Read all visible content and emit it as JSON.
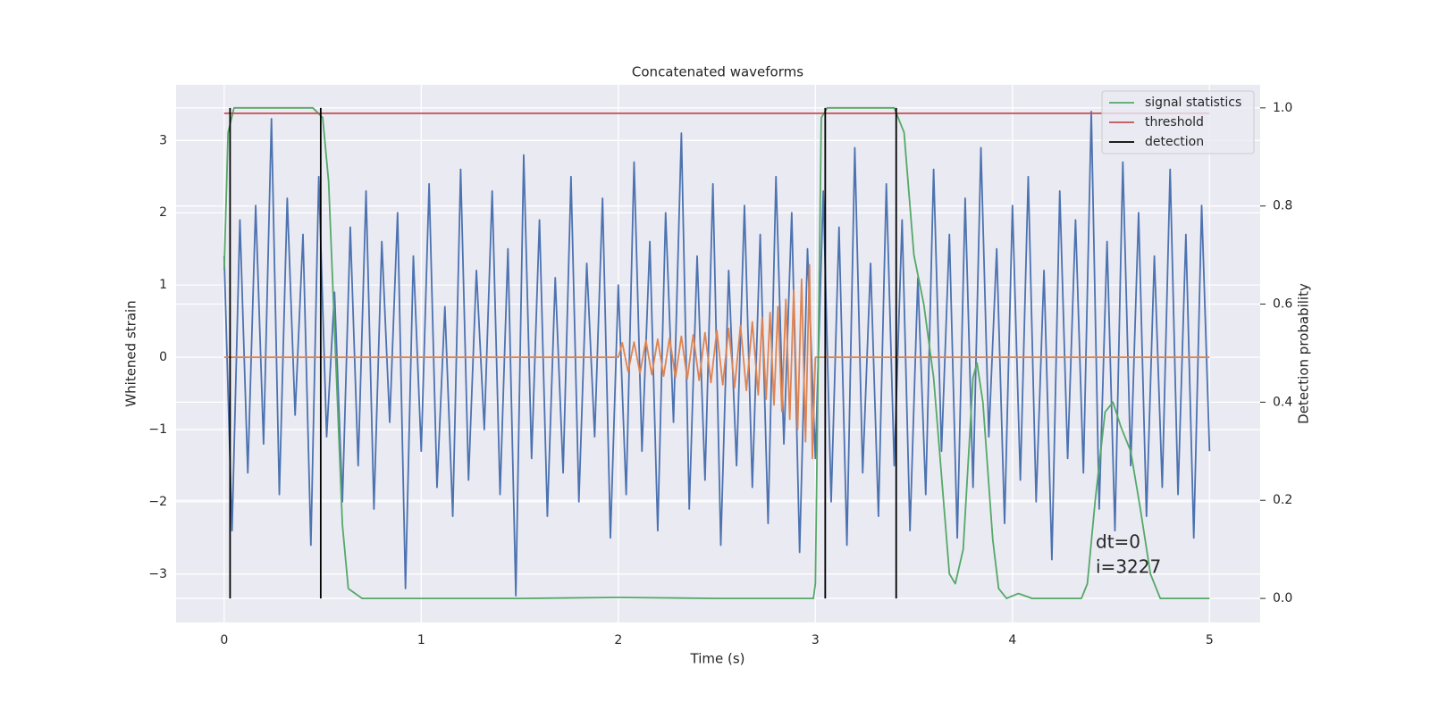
{
  "chart_data": {
    "type": "line",
    "title": "Concatenated waveforms",
    "xlabel": "Time (s)",
    "ylabel": "Whitened strain",
    "y2label": "Detection probability",
    "xlim": [
      -0.244,
      5.257
    ],
    "ylim": [
      -3.67,
      3.77
    ],
    "y2lim": [
      -0.049,
      1.047
    ],
    "xticks": [
      0,
      1,
      2,
      3,
      4,
      5
    ],
    "yticks": [
      {
        "value": -3,
        "label": "−3"
      },
      {
        "value": -2,
        "label": "−2"
      },
      {
        "value": -1,
        "label": "−1"
      },
      0,
      1,
      2,
      3
    ],
    "y2ticks": [
      {
        "value": 0,
        "label": "0.0"
      },
      {
        "value": 0.2,
        "label": "0.2"
      },
      {
        "value": 0.4,
        "label": "0.4"
      },
      {
        "value": 0.6,
        "label": "0.6"
      },
      {
        "value": 0.8,
        "label": "0.8"
      },
      {
        "value": 1,
        "label": "1.0"
      }
    ],
    "grid": true,
    "legend": "upper right",
    "annotations": [
      "dt=0",
      "i=3227"
    ],
    "strain": {
      "color": "#4c72b0",
      "x": [
        0,
        0.04,
        0.08,
        0.12,
        0.16,
        0.2,
        0.24,
        0.28,
        0.32,
        0.36,
        0.4,
        0.44,
        0.48,
        0.52,
        0.56,
        0.6,
        0.64,
        0.68,
        0.72,
        0.76,
        0.8,
        0.84,
        0.88,
        0.92,
        0.96,
        1,
        1.04,
        1.08,
        1.12,
        1.16,
        1.2,
        1.24,
        1.28,
        1.32,
        1.36,
        1.4,
        1.44,
        1.48,
        1.52,
        1.56,
        1.6,
        1.64,
        1.68,
        1.72,
        1.76,
        1.8,
        1.84,
        1.88,
        1.92,
        1.96,
        2,
        2.04,
        2.08,
        2.12,
        2.16,
        2.2,
        2.24,
        2.28,
        2.32,
        2.36,
        2.4,
        2.44,
        2.48,
        2.52,
        2.56,
        2.6,
        2.64,
        2.68,
        2.72,
        2.76,
        2.8,
        2.84,
        2.88,
        2.92,
        2.96,
        3,
        3.04,
        3.08,
        3.12,
        3.16,
        3.2,
        3.24,
        3.28,
        3.32,
        3.36,
        3.4,
        3.44,
        3.48,
        3.52,
        3.56,
        3.6,
        3.64,
        3.68,
        3.72,
        3.76,
        3.8,
        3.84,
        3.88,
        3.92,
        3.96,
        4,
        4.04,
        4.08,
        4.12,
        4.16,
        4.2,
        4.24,
        4.28,
        4.32,
        4.36,
        4.4,
        4.44,
        4.48,
        4.52,
        4.56,
        4.6,
        4.64,
        4.68,
        4.72,
        4.76,
        4.8,
        4.84,
        4.88,
        4.92,
        4.96,
        5
      ],
      "values": [
        1.4,
        -2.4,
        1.9,
        -1.6,
        2.1,
        -1.2,
        3.3,
        -1.9,
        2.2,
        -0.8,
        1.7,
        -2.6,
        2.5,
        -1.1,
        0.9,
        -2.0,
        1.8,
        -1.5,
        2.3,
        -2.1,
        1.6,
        -0.9,
        2.0,
        -3.2,
        1.4,
        -1.3,
        2.4,
        -1.8,
        0.7,
        -2.2,
        2.6,
        -1.7,
        1.2,
        -1.0,
        2.3,
        -1.9,
        1.5,
        -3.3,
        2.8,
        -1.4,
        1.9,
        -2.2,
        1.1,
        -1.6,
        2.5,
        -2.0,
        1.3,
        -1.1,
        2.2,
        -2.5,
        1.0,
        -1.9,
        2.7,
        -1.3,
        1.6,
        -2.4,
        2.0,
        -0.9,
        3.1,
        -2.1,
        1.4,
        -1.7,
        2.4,
        -2.6,
        1.2,
        -1.5,
        2.1,
        -1.8,
        1.7,
        -2.3,
        2.5,
        -1.2,
        2.0,
        -2.7,
        1.5,
        -1.4,
        2.3,
        -2.0,
        1.8,
        -2.6,
        2.9,
        -1.6,
        1.3,
        -2.2,
        2.4,
        -1.5,
        1.9,
        -2.4,
        1.1,
        -1.9,
        2.6,
        -1.3,
        1.7,
        -2.5,
        2.2,
        -1.8,
        2.9,
        -1.1,
        1.5,
        -2.3,
        2.1,
        -1.7,
        2.5,
        -2.0,
        1.2,
        -2.8,
        2.3,
        -1.4,
        1.9,
        -1.6,
        3.4,
        -2.1,
        1.6,
        -2.4,
        2.7,
        -1.5,
        2.0,
        -2.2,
        1.4,
        -1.8,
        2.6,
        -1.9,
        1.7,
        -2.5,
        2.1,
        -1.3
      ]
    },
    "template": {
      "color": "#dd8452",
      "x": [
        0,
        2,
        2.02,
        2.05,
        2.08,
        2.11,
        2.14,
        2.17,
        2.2,
        2.23,
        2.26,
        2.29,
        2.32,
        2.35,
        2.38,
        2.41,
        2.44,
        2.47,
        2.5,
        2.53,
        2.56,
        2.59,
        2.62,
        2.65,
        2.68,
        2.71,
        2.73,
        2.75,
        2.77,
        2.79,
        2.81,
        2.83,
        2.85,
        2.87,
        2.89,
        2.91,
        2.93,
        2.95,
        2.97,
        2.985,
        3,
        5
      ],
      "values": [
        0,
        0,
        0.2,
        -0.2,
        0.21,
        -0.22,
        0.23,
        -0.24,
        0.25,
        -0.26,
        0.27,
        -0.28,
        0.29,
        -0.3,
        0.31,
        -0.32,
        0.34,
        -0.35,
        0.37,
        -0.38,
        0.4,
        -0.42,
        0.44,
        -0.46,
        0.49,
        -0.52,
        0.55,
        -0.58,
        0.62,
        -0.66,
        0.7,
        -0.75,
        0.8,
        -0.86,
        0.93,
        -1.0,
        1.08,
        -1.17,
        1.28,
        -1.4,
        0,
        0
      ]
    },
    "series": [
      {
        "name": "signal statistics",
        "color": "#55a868",
        "axis": "y2",
        "x": [
          0,
          0.02,
          0.05,
          0.1,
          0.45,
          0.5,
          0.53,
          0.56,
          0.6,
          0.63,
          0.7,
          1.5,
          2,
          2.5,
          2.99,
          3,
          3.03,
          3.06,
          3.4,
          3.45,
          3.5,
          3.55,
          3.6,
          3.65,
          3.68,
          3.71,
          3.75,
          3.8,
          3.82,
          3.85,
          3.9,
          3.93,
          3.97,
          4.03,
          4.1,
          4.35,
          4.38,
          4.42,
          4.47,
          4.51,
          4.55,
          4.6,
          4.65,
          4.7,
          4.75,
          5
        ],
        "values": [
          0.67,
          0.95,
          1.0,
          1.0,
          1.0,
          0.98,
          0.85,
          0.55,
          0.15,
          0.02,
          0.0,
          0.0,
          0.002,
          0.0,
          0.0,
          0.03,
          0.98,
          1.0,
          1.0,
          0.95,
          0.7,
          0.6,
          0.45,
          0.2,
          0.05,
          0.03,
          0.1,
          0.45,
          0.48,
          0.4,
          0.12,
          0.02,
          0.0,
          0.01,
          0.0,
          0.0,
          0.03,
          0.2,
          0.38,
          0.4,
          0.35,
          0.3,
          0.18,
          0.05,
          0.0,
          0.0
        ]
      },
      {
        "name": "threshold",
        "color": "#c44e52",
        "axis": "y2",
        "x": [
          0,
          5
        ],
        "values": [
          0.989,
          0.989
        ]
      },
      {
        "name": "detection",
        "color": "#000000",
        "axis": "y2",
        "x": [
          0.03,
          0.03,
          null,
          0.49,
          0.49,
          null,
          3.05,
          3.05,
          null,
          3.41,
          3.41
        ],
        "values": [
          0,
          1,
          null,
          0,
          1,
          null,
          0,
          1,
          null,
          0,
          1
        ]
      }
    ]
  }
}
